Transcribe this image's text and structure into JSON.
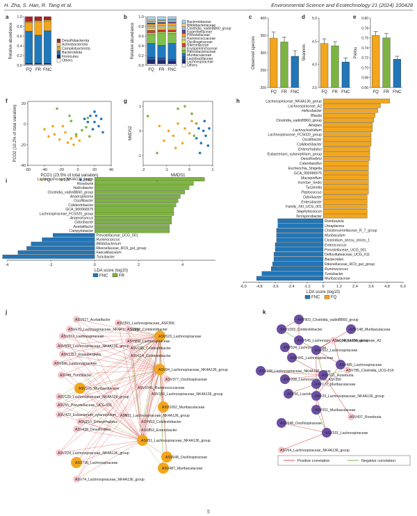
{
  "header": {
    "authors": "H. Zha, S. Han, R. Tang et al.",
    "journal": "Environmental Science and Ecotechnology 21 (2024) 100428"
  },
  "groups": [
    "FQ",
    "FR",
    "FNC"
  ],
  "colors": {
    "FQ": "#f3a61c",
    "FR": "#7db342",
    "FNC": "#2176b8"
  },
  "panel_labels": [
    "a",
    "b",
    "c",
    "d",
    "e",
    "f",
    "g",
    "h",
    "i",
    "j",
    "k"
  ],
  "chart_data": [
    {
      "id": "a",
      "type": "bar",
      "stacked": true,
      "ylabel": "Relative abundance",
      "ylim": [
        0,
        1.0
      ],
      "yticks": [
        "0.0",
        "0.2",
        "0.4",
        "0.6",
        "0.8",
        "1.0"
      ],
      "categories": [
        "FQ",
        "FR",
        "FNC"
      ],
      "series": [
        {
          "name": "Others",
          "color": "#ffffff",
          "values": [
            0.02,
            0.02,
            0.02
          ]
        },
        {
          "name": "Firmicutes",
          "color": "#1b2a6b",
          "values": [
            0.02,
            0.02,
            0.02
          ]
        },
        {
          "name": "Bacteroidota",
          "color": "#1f79bd",
          "values": [
            0.66,
            0.58,
            0.67
          ]
        },
        {
          "name": "Campilobacterota",
          "color": "#f3a61c",
          "values": [
            0.18,
            0.28,
            0.2
          ]
        },
        {
          "name": "Actinobacteriota",
          "color": "#e6e04a",
          "values": [
            0.02,
            0.02,
            0.02
          ]
        },
        {
          "name": "Desulfobacterota",
          "color": "#b32026",
          "values": [
            0.1,
            0.08,
            0.07
          ]
        }
      ]
    },
    {
      "id": "b",
      "type": "bar",
      "stacked": true,
      "ylabel": "Relative abundance",
      "ylim": [
        0,
        1.0
      ],
      "yticks": [
        "0.0",
        "0.2",
        "0.4",
        "0.6",
        "0.8",
        "1.0"
      ],
      "categories": [
        "FQ",
        "FR",
        "FNC"
      ],
      "series": [
        {
          "name": "Others",
          "color": "#ffffff",
          "values": [
            0.03,
            0.03,
            0.03
          ]
        },
        {
          "name": "Lachnospiraceae",
          "color": "#1b2a6b",
          "values": [
            0.08,
            0.07,
            0.05
          ]
        },
        {
          "name": "Lactobacillaceae",
          "color": "#2f4fa3",
          "values": [
            0.06,
            0.05,
            0.04
          ]
        },
        {
          "name": "Muribaculaceae",
          "color": "#1f79bd",
          "values": [
            0.28,
            0.26,
            0.33
          ]
        },
        {
          "name": "Helicobacteraceae",
          "color": "#7fbf4d",
          "values": [
            0.18,
            0.25,
            0.2
          ]
        },
        {
          "name": "Erysipelotrichaceae",
          "color": "#aed36b",
          "values": [
            0.04,
            0.03,
            0.04
          ]
        },
        {
          "name": "Rikenellaceae",
          "color": "#d63a2e",
          "values": [
            0.05,
            0.04,
            0.04
          ]
        },
        {
          "name": "Oscillospiraceae",
          "color": "#e6e04a",
          "values": [
            0.04,
            0.04,
            0.04
          ]
        },
        {
          "name": "Ruminococcaceae",
          "color": "#c9c9c9",
          "values": [
            0.04,
            0.04,
            0.04
          ]
        },
        {
          "name": "Prevotellaceae",
          "color": "#f3a61c",
          "values": [
            0.05,
            0.05,
            0.06
          ]
        },
        {
          "name": "Eggerthellaceae",
          "color": "#6a3d9a",
          "values": [
            0.02,
            0.02,
            0.02
          ]
        },
        {
          "name": "Clostridia_vadinBB60_group",
          "color": "#8fc4e8",
          "values": [
            0.04,
            0.04,
            0.04
          ]
        },
        {
          "name": "Bifidobacteriaceae",
          "color": "#f6c98a",
          "values": [
            0.03,
            0.02,
            0.02
          ]
        },
        {
          "name": "Bacteroidaceae",
          "color": "#a9d4ef",
          "values": [
            0.06,
            0.06,
            0.05
          ]
        }
      ]
    },
    {
      "id": "c",
      "type": "bar",
      "ylabel": "Observed species",
      "ylim": [
        200,
        400
      ],
      "yticks": [
        "200",
        "250",
        "300",
        "350",
        "400"
      ],
      "categories": [
        "FQ",
        "FR",
        "FNC"
      ],
      "values": [
        342,
        331,
        290
      ],
      "errors": [
        18,
        14,
        16
      ]
    },
    {
      "id": "d",
      "type": "bar",
      "ylabel": "Shannon",
      "ylim": [
        3.5,
        5.0
      ],
      "yticks": [
        "3.5",
        "4.0",
        "4.5",
        "5.0"
      ],
      "categories": [
        "FQ",
        "FR",
        "FNC"
      ],
      "values": [
        4.45,
        4.4,
        4.05
      ],
      "errors": [
        0.1,
        0.09,
        0.09
      ]
    },
    {
      "id": "e",
      "type": "bar",
      "ylabel": "Pielou",
      "ylim": [
        0.66,
        0.8
      ],
      "yticks": [
        "0.66",
        "0.68",
        "0.70",
        "0.72",
        "0.74",
        "0.76",
        "0.78",
        "0.80"
      ],
      "categories": [
        "FQ",
        "FR",
        "FNC"
      ],
      "values": [
        0.765,
        0.76,
        0.717
      ],
      "errors": [
        0.008,
        0.009,
        0.006
      ]
    },
    {
      "id": "f",
      "type": "scatter",
      "xlabel": "PCO1 (23.5% of total variation)",
      "ylabel": "PCO2 (10.2% of total variation)",
      "xlim": [
        -60,
        40
      ],
      "ylim": [
        -40,
        22
      ],
      "xticks": [
        "-60",
        "-40",
        "-20",
        "0",
        "20",
        "40"
      ],
      "yticks": [
        "-40",
        "-20",
        "0",
        "20"
      ],
      "series": [
        {
          "name": "FQ",
          "color": "#f3a61c",
          "points": [
            [
              -40,
              -5
            ],
            [
              -35,
              -12
            ],
            [
              -28,
              -10
            ],
            [
              -22,
              -15
            ],
            [
              -15,
              -8
            ],
            [
              -12,
              -18
            ],
            [
              -8,
              -14
            ],
            [
              -5,
              -20
            ],
            [
              -2,
              -12
            ],
            [
              2,
              -16
            ],
            [
              -30,
              -2
            ],
            [
              -18,
              -2
            ]
          ]
        },
        {
          "name": "FR",
          "color": "#7db342",
          "points": [
            [
              -25,
              15
            ],
            [
              -10,
              8
            ],
            [
              5,
              -6
            ],
            [
              10,
              -3
            ],
            [
              -2,
              -10
            ],
            [
              14,
              -12
            ],
            [
              -8,
              3
            ],
            [
              12,
              6
            ]
          ]
        },
        {
          "name": "FNC",
          "color": "#2176b8",
          "points": [
            [
              8,
              5
            ],
            [
              12,
              2
            ],
            [
              15,
              8
            ],
            [
              18,
              -5
            ],
            [
              20,
              2
            ],
            [
              22,
              8
            ],
            [
              25,
              -2
            ],
            [
              28,
              5
            ],
            [
              30,
              -8
            ],
            [
              20,
              12
            ]
          ]
        }
      ]
    },
    {
      "id": "g",
      "type": "scatter",
      "xlabel": "NMDS1",
      "ylabel": "NMDS2",
      "xlim": [
        -2,
        1
      ],
      "ylim": [
        -1.4,
        1.2
      ],
      "xticks": [
        "-2",
        "-1",
        "0",
        "1"
      ],
      "yticks": [
        "-1",
        "0",
        "1"
      ],
      "series": [
        {
          "name": "FQ",
          "color": "#f3a61c",
          "points": [
            [
              -1.3,
              0.2
            ],
            [
              -1.1,
              -0.4
            ],
            [
              -0.9,
              0.0
            ],
            [
              -0.7,
              -0.2
            ],
            [
              -0.5,
              0.3
            ],
            [
              -0.3,
              -0.5
            ],
            [
              -0.2,
              0.1
            ],
            [
              0.0,
              -0.1
            ],
            [
              0.1,
              0.4
            ],
            [
              -0.6,
              -0.7
            ]
          ]
        },
        {
          "name": "FR",
          "color": "#7db342",
          "points": [
            [
              -1.8,
              0.6
            ],
            [
              -0.5,
              0.9
            ],
            [
              -0.2,
              1.0
            ],
            [
              0.1,
              0.7
            ],
            [
              0.2,
              -0.2
            ],
            [
              0.3,
              0.3
            ],
            [
              -1.4,
              -0.9
            ]
          ]
        },
        {
          "name": "FNC",
          "color": "#2176b8",
          "points": [
            [
              0.3,
              -0.3
            ],
            [
              0.4,
              0.1
            ],
            [
              0.5,
              -0.5
            ],
            [
              0.6,
              0.0
            ],
            [
              0.65,
              0.4
            ],
            [
              0.7,
              -0.2
            ],
            [
              0.8,
              -0.6
            ],
            [
              0.85,
              0.1
            ],
            [
              0.45,
              -0.9
            ]
          ]
        }
      ]
    },
    {
      "id": "h",
      "type": "bar",
      "orientation": "horizontal",
      "xlabel": "LDA score (log10)",
      "xlim": [
        -6,
        6
      ],
      "xticks": [
        "-6.0",
        "-4.8",
        "-3.6",
        "-2.4",
        "-1.2",
        "0",
        "1.2",
        "2.4",
        "3.6",
        "4.8",
        "6.0"
      ],
      "legend": [
        "FNC",
        "FQ"
      ],
      "categories": [
        "Lachnospiraceae_NK4A136_group",
        "Lachnospiraceae_A2",
        "Helicobacter",
        "Blautia",
        "Clostridia_vadinBB60_group",
        "Alistipes",
        "Lachnoclostridium",
        "Lachnospiraceae_FCS020_group",
        "Oscillibacter",
        "Colidextribacter",
        "Enterorhabdus",
        "Eubacterium_xylanophilum_group",
        "Desulfovibrio",
        "Catenibacillus",
        "Escherichia_Shigella",
        "GCA_900066575",
        "Mucispirillum",
        "Incertae_Sedis",
        "Tyzzerella",
        "Peptococcus",
        "Odoribacter",
        "Enterobacter",
        "Family_XIII_UCG_001",
        "Staphylococcus",
        "Terrisporobacter",
        "Romboutsia",
        "Ureaplasma",
        "Christensenellaceae_R_7_group",
        "Muribaculum",
        "Clostridium_sensu_stricto_1",
        "Enterococcus",
        "Prevotellaceae_UCG_001",
        "Defluviitaleaceae_UCG_011",
        "Bacteroides",
        "Rikenellaceae_RC9_gut_group",
        "Ruminococcus",
        "Turicibacter",
        "Muribaculaceae"
      ],
      "values": [
        5.0,
        4.3,
        4.1,
        3.9,
        3.8,
        3.7,
        3.7,
        3.6,
        3.6,
        3.6,
        3.5,
        3.5,
        3.5,
        3.4,
        3.4,
        3.4,
        3.4,
        3.4,
        3.4,
        3.4,
        3.3,
        3.3,
        3.3,
        3.3,
        3.3,
        -3.4,
        -3.4,
        -3.5,
        -3.5,
        -3.5,
        -3.6,
        -3.6,
        -3.7,
        -3.7,
        -3.8,
        -3.9,
        -4.6,
        -5.0
      ]
    },
    {
      "id": "i",
      "type": "bar",
      "orientation": "horizontal",
      "xlabel": "LDA score (log10)",
      "xlim": [
        -4,
        5.5
      ],
      "xticks": [
        "-4",
        "-2",
        "0",
        "2",
        "4"
      ],
      "legend": [
        "FNC",
        "FR"
      ],
      "categories": [
        "Lachnospiraceae_NK4A136_group",
        "Roseburia",
        "Helicobacter",
        "Clostridia_vadinBB60_group",
        "Anaeroplasma",
        "Oscillibacter",
        "Colidextribacter",
        "GCA_900066575",
        "Lachnospiraceae_FCS020_group",
        "Anaerotruncus",
        "Odoribacter",
        "Acetatifactor",
        "Campylobacter",
        "Prevotellaceae_UCG_001",
        "Ruminococcus",
        "Bifidobacterium",
        "Rikenellaceae_RC9_gut_group",
        "Faecalibaculum",
        "Turicibacter"
      ],
      "values": [
        5.0,
        4.5,
        4.3,
        4.1,
        3.9,
        3.8,
        3.7,
        3.6,
        3.6,
        3.5,
        3.5,
        3.4,
        3.4,
        -1.9,
        -2.4,
        -2.9,
        -3.1,
        -3.5,
        -4.2
      ]
    }
  ],
  "network_j": {
    "nodes": [
      {
        "label": "ASV617_Acetatifactor",
        "tone": "light"
      },
      {
        "label": "ASV393_Lachnospiraceae_ASF356",
        "tone": "light"
      },
      {
        "label": "ASV175_Lachnospiraceae_NK4A136_group",
        "tone": "light"
      },
      {
        "label": "ASV992_Colidextribacter",
        "tone": "light"
      },
      {
        "label": "ASV312_Lachnospiraceae",
        "tone": "light"
      },
      {
        "label": "ASV523_Lachnospiraceae",
        "tone": "dark"
      },
      {
        "label": "ASV958_Lachnospiraceae",
        "tone": "light"
      },
      {
        "label": "ASV592_Lachnospiraceae_NK4A136_group",
        "tone": "light"
      },
      {
        "label": "ASV196_Colidextribacter",
        "tone": "light"
      },
      {
        "label": "ASV1357_Eisenbergiella",
        "tone": "light"
      },
      {
        "label": "ASV614_Colidextribacter",
        "tone": "light"
      },
      {
        "label": "ASV336_Lachnospiraceae",
        "tone": "light"
      },
      {
        "label": "ASV94_Lachnospiraceae_NK4A136_group",
        "tone": "dark"
      },
      {
        "label": "ASV49_Turicibacter",
        "tone": "light"
      },
      {
        "label": "ASV377_Oscillospiraceae",
        "tone": "light"
      },
      {
        "label": "ASV105_Muribaculaceae",
        "tone": "dark"
      },
      {
        "label": "ASV1045_Ruminococcaceae",
        "tone": "light"
      },
      {
        "label": "ASV125_Lachnospiraceae_NK4A136_group",
        "tone": "light"
      },
      {
        "label": "ASV159_Lachnospiraceae_NK4A136_group",
        "tone": "light"
      },
      {
        "label": "ASV55_Prevotellaceae_UCG-001",
        "tone": "light"
      },
      {
        "label": "ASV1052_Muribaculaceae",
        "tone": "dark"
      },
      {
        "label": "ASV423_Eubacterium_xylanophilum_group",
        "tone": "light"
      },
      {
        "label": "ASV21_Lachnospiraceae_NK4A136_group",
        "tone": "light"
      },
      {
        "label": "ASV210_Enterorhabdus",
        "tone": "light"
      },
      {
        "label": "ASV653_Colidextribacter",
        "tone": "light"
      },
      {
        "label": "ASV439_Desulfovibrio",
        "tone": "light"
      },
      {
        "label": "ASV853_Enterobacter",
        "tone": "light"
      },
      {
        "label": "ASV51_Lachnospiraceae_NK4A136_group",
        "tone": "dark"
      },
      {
        "label": "ASV224_Lachnospiraceae_NK4A136_group",
        "tone": "light"
      },
      {
        "label": "ASV648_Oscillospiraceae",
        "tone": "dark"
      },
      {
        "label": "ASV736_Lachnospiraceae",
        "tone": "dark"
      },
      {
        "label": "ASV487_Muribaculaceae",
        "tone": "dark"
      },
      {
        "label": "ASV74_Lachnospiraceae_NK4A136_group",
        "tone": "light"
      }
    ]
  },
  "network_k": {
    "nodes": [
      {
        "label": "ASV903_Clostridia_vadinBB60_group",
        "tone": "dark"
      },
      {
        "label": "ASV1093_Colidextribacter",
        "tone": "dark"
      },
      {
        "label": "ASV148_Muribaculaceae",
        "tone": "dark"
      },
      {
        "label": "ASV545_Lachnospiraceae_NK4A136_group",
        "tone": "dark"
      },
      {
        "label": "ASV104_Lachnospiraceae_A2",
        "tone": "light"
      },
      {
        "label": "ASV534_Lachnospiraceae",
        "tone": "dark"
      },
      {
        "label": "ASV502_Lachnospiraceae",
        "tone": "dark"
      },
      {
        "label": "ASV441_Lachnospiraceae",
        "tone": "dark"
      },
      {
        "label": "ASV485_Lachnospiraceae",
        "tone": "dark"
      },
      {
        "label": "ASV168_Lachnospiraceae_NK4A136_group",
        "tone": "dark"
      },
      {
        "label": "ASV785_Clostridia_UCG-014",
        "tone": "light"
      },
      {
        "label": "ASV208_Lachnospiraceae_ASF356",
        "tone": "dark"
      },
      {
        "label": "ASV101_Roseburia",
        "tone": "dark"
      },
      {
        "label": "ASV172_Muribaculaceae",
        "tone": "dark"
      },
      {
        "label": "ASV56_Lactobacillus",
        "tone": "dark"
      },
      {
        "label": "ASV29_Lachnospiraceae_NK4A136_group",
        "tone": "dark"
      },
      {
        "label": "ASV201_Muribaculaceae",
        "tone": "dark"
      },
      {
        "label": "ASV437_Roseburia",
        "tone": "light"
      },
      {
        "label": "ASV648_Oscillospiraceae",
        "tone": "dark"
      },
      {
        "label": "ASV331_Lachnospiraceae",
        "tone": "dark"
      },
      {
        "label": "ASV54_Lachnospiraceae_NK4A136_group",
        "tone": "light"
      }
    ],
    "legend": [
      "Positive correlation",
      "Negative correlation"
    ]
  },
  "colors_network": {
    "j_dark": "#f3a61c",
    "j_light": "#f7c6cc",
    "k_dark": "#6a4fa3",
    "k_light": "#f7c6cc",
    "pos": "#d9534f",
    "neg": "#7db342"
  },
  "footer": "5"
}
